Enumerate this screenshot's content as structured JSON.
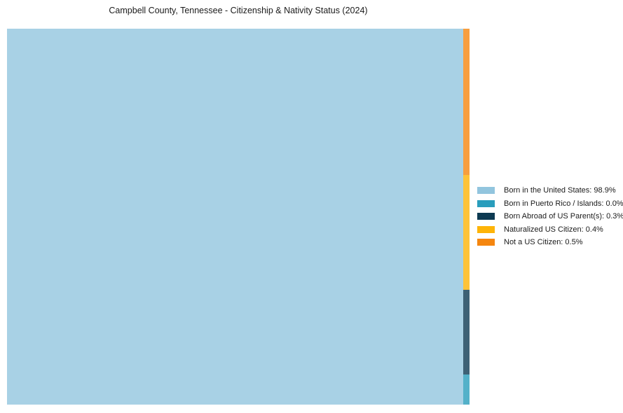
{
  "page": {
    "background": "#ffffff",
    "text_color": "#1a1a1a"
  },
  "chart_data": {
    "type": "treemap",
    "title": "Campbell County, Tennessee - Citizenship & Nativity Status (2024)",
    "unit": "%",
    "items": [
      {
        "label": "Born in the United States",
        "value": 98.9,
        "display": "Born in the United States: 98.9%",
        "color": "#92C5DE"
      },
      {
        "label": "Born in Puerto Rico / Islands",
        "value": 0.0,
        "display": "Born in Puerto Rico / Islands: 0.0%",
        "color": "#299DBC"
      },
      {
        "label": "Born Abroad of US Parent(s)",
        "value": 0.3,
        "display": "Born Abroad of US Parent(s): 0.3%",
        "color": "#0D3A52"
      },
      {
        "label": "Naturalized US Citizen",
        "value": 0.4,
        "display": "Naturalized US Citizen: 0.4%",
        "color": "#FEB408"
      },
      {
        "label": "Not a US Citizen",
        "value": 0.5,
        "display": "Not a US Citizen: 0.5%",
        "color": "#F5860F"
      }
    ],
    "legend": {
      "position": "right-middle",
      "entries_order": [
        0,
        1,
        2,
        3,
        4
      ]
    },
    "layout": {
      "grid": false,
      "main_item_index": 0,
      "main_width_fraction": 0.9864,
      "strip_item_indices": [
        4,
        3,
        2,
        1
      ],
      "strip_height_fractions": [
        0.3892,
        0.3054,
        0.2253,
        0.0801
      ],
      "cell_opacity": 0.8
    }
  }
}
